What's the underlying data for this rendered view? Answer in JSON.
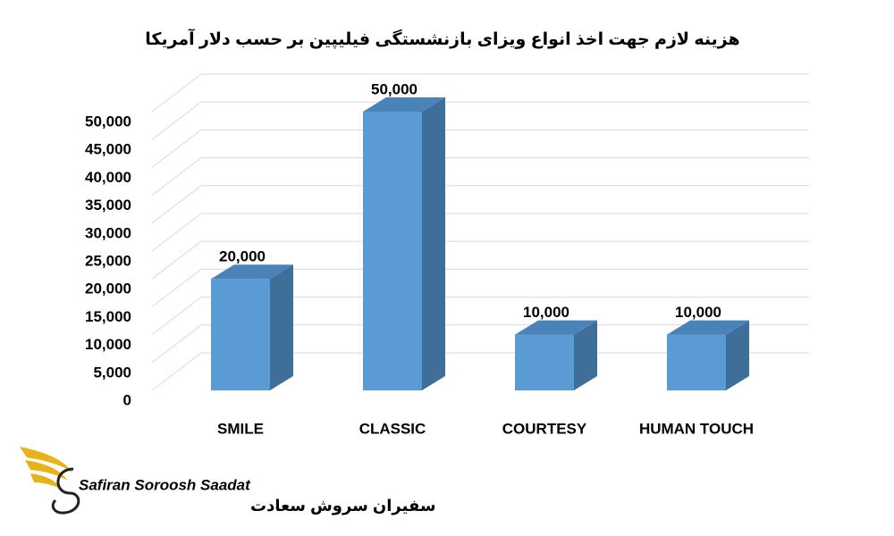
{
  "chart_data": {
    "type": "bar3d",
    "title": "هزینه لازم جهت اخذ انواع ویزای بازنشستگی فیلیپین بر حسب دلار آمریکا",
    "categories": [
      "SMILE",
      "CLASSIC",
      "COURTESY",
      "HUMAN TOUCH"
    ],
    "values": [
      20000,
      50000,
      10000,
      10000
    ],
    "value_labels": [
      "20,000",
      "50,000",
      "10,000",
      "10,000"
    ],
    "color": "#5b9bd5",
    "ylim": [
      0,
      50000
    ],
    "yticks": [
      0,
      {
        "value": 5000,
        "label": "5,000"
      },
      {
        "value": 10000,
        "label": "10,000"
      },
      {
        "value": 15000,
        "label": "15,000"
      },
      {
        "value": 20000,
        "label": "20,000"
      },
      {
        "value": 25000,
        "label": "25,000"
      },
      {
        "value": 30000,
        "label": "30,000"
      },
      {
        "value": 35000,
        "label": "35,000"
      },
      {
        "value": 40000,
        "label": "40,000"
      },
      {
        "value": 45000,
        "label": "45,000"
      },
      {
        "value": 50000,
        "label": "50,000"
      }
    ],
    "grid": true
  },
  "logo": {
    "name": "Safiran Soroosh Saadat",
    "name_fa": "سفیران سروش سعادت"
  }
}
